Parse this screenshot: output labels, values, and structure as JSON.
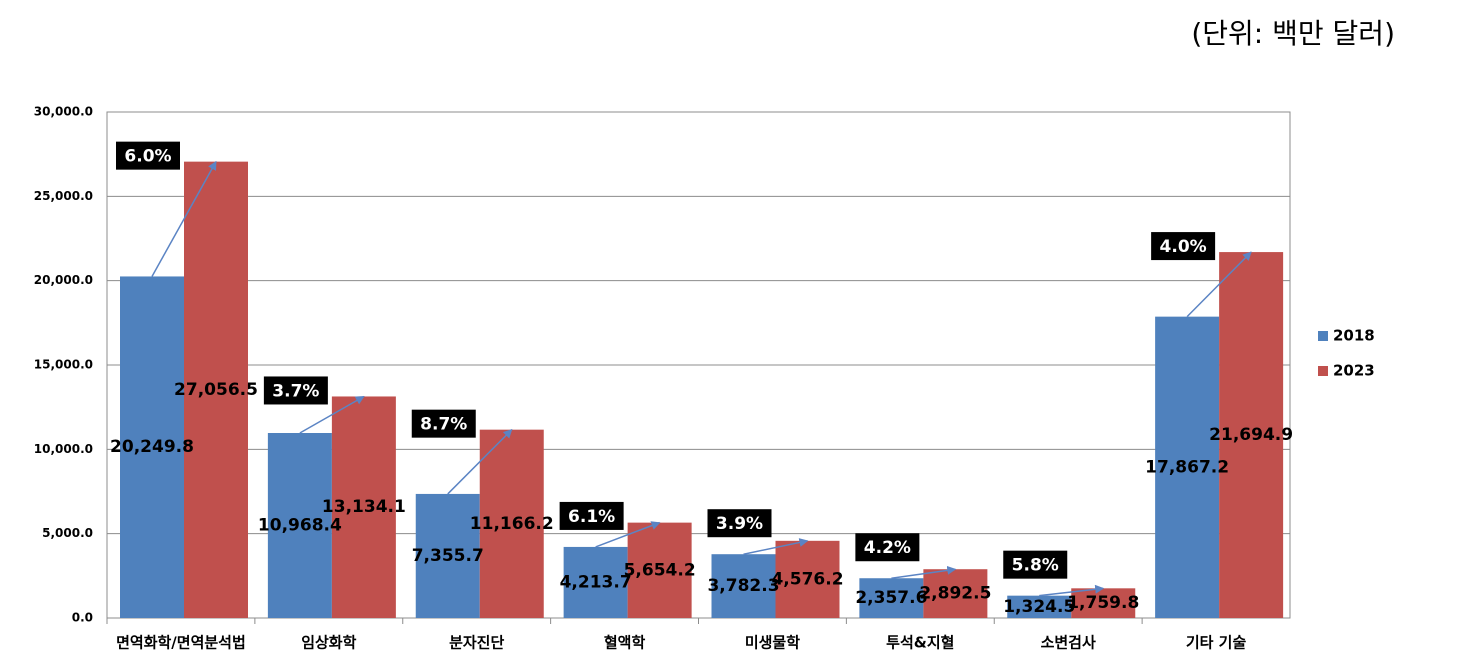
{
  "chart_data": {
    "type": "bar",
    "unit_note": "(단위:  백만  달러)",
    "categories": [
      "면역화학/면역분석법",
      "임상화학",
      "분자진단",
      "혈액학",
      "미생물학",
      "투석&지혈",
      "소변검사",
      "기타 기술"
    ],
    "series": [
      {
        "name": "2018",
        "color": "#4f81bd",
        "values": [
          20249.8,
          10968.4,
          7355.7,
          4213.7,
          3782.3,
          2357.6,
          1324.5,
          17867.2
        ],
        "value_labels": [
          "20,249.8",
          "10,968.4",
          "7,355.7",
          "4,213.7",
          "3,782.3",
          "2,357.6",
          "1,324.5",
          "17,867.2"
        ]
      },
      {
        "name": "2023",
        "color": "#c0504d",
        "values": [
          27056.5,
          13134.1,
          11166.2,
          5654.2,
          4576.2,
          2892.5,
          1759.8,
          21694.9
        ],
        "value_labels": [
          "27,056.5",
          "13,134.1",
          "11,166.2",
          "5,654.2",
          "4,576.2",
          "2,892.5",
          "1,759.8",
          "21,694.9"
        ]
      }
    ],
    "annotations": [
      "6.0%",
      "3.7%",
      "8.7%",
      "6.1%",
      "3.9%",
      "4.2%",
      "5.8%",
      "4.0%"
    ],
    "ylim": [
      0,
      30000
    ],
    "yticks": [
      {
        "value": 0,
        "label": "0.0"
      },
      {
        "value": 5000,
        "label": "5,000.0"
      },
      {
        "value": 10000,
        "label": "10,000.0"
      },
      {
        "value": 15000,
        "label": "15,000.0"
      },
      {
        "value": 20000,
        "label": "20,000.0"
      },
      {
        "value": 25000,
        "label": "25,000.0"
      },
      {
        "value": 30000,
        "label": "30,000.0"
      }
    ],
    "grid": true,
    "legend": "right"
  }
}
